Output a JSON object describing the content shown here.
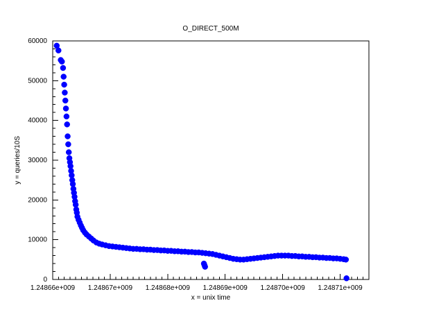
{
  "chart_data": {
    "type": "scatter",
    "title": "O_DIRECT_500M",
    "xlabel": "x = unix time",
    "ylabel": "y = queries/10S",
    "xlim": [
      1248660000,
      1248715000
    ],
    "ylim": [
      0,
      60000
    ],
    "x_ticks": [
      1248660000,
      1248670000,
      1248680000,
      1248690000,
      1248700000,
      1248710000
    ],
    "x_tick_labels": [
      "1.24866e+009",
      "1.24867e+009",
      "1.24868e+009",
      "1.24869e+009",
      "1.24870e+009",
      "1.24871e+009"
    ],
    "y_ticks": [
      0,
      10000,
      20000,
      30000,
      40000,
      50000,
      60000
    ],
    "y_tick_labels": [
      "0",
      "10000",
      "20000",
      "30000",
      "40000",
      "50000",
      "60000"
    ],
    "grid": false,
    "marker_color": "#0000ff",
    "series": [
      {
        "values": [
          [
            1248660700,
            58800
          ],
          [
            1248661000,
            57600
          ],
          [
            1248661400,
            55200
          ],
          [
            1248661600,
            54800
          ],
          [
            1248661800,
            53200
          ],
          [
            1248661900,
            51000
          ],
          [
            1248662000,
            49000
          ],
          [
            1248662100,
            47000
          ],
          [
            1248662200,
            45000
          ],
          [
            1248662300,
            43000
          ],
          [
            1248662400,
            41000
          ],
          [
            1248662500,
            39000
          ],
          [
            1248662600,
            36000
          ],
          [
            1248662700,
            34000
          ],
          [
            1248662800,
            32000
          ],
          [
            1248662900,
            30500
          ],
          [
            1248663000,
            29500
          ],
          [
            1248663100,
            28500
          ],
          [
            1248663200,
            27300
          ],
          [
            1248663300,
            26200
          ],
          [
            1248663400,
            25000
          ],
          [
            1248663500,
            24000
          ],
          [
            1248663600,
            22800
          ],
          [
            1248663700,
            21800
          ],
          [
            1248663800,
            20800
          ],
          [
            1248663900,
            19700
          ],
          [
            1248664000,
            18800
          ],
          [
            1248664100,
            17600
          ],
          [
            1248664200,
            16800
          ],
          [
            1248664300,
            15800
          ],
          [
            1248664500,
            15000
          ],
          [
            1248664700,
            14300
          ],
          [
            1248664900,
            13600
          ],
          [
            1248665100,
            13000
          ],
          [
            1248665300,
            12400
          ],
          [
            1248665600,
            11800
          ],
          [
            1248665900,
            11300
          ],
          [
            1248666300,
            10800
          ],
          [
            1248666700,
            10300
          ],
          [
            1248667100,
            9800
          ],
          [
            1248667600,
            9300
          ],
          [
            1248668100,
            9000
          ],
          [
            1248668600,
            8800
          ],
          [
            1248669200,
            8600
          ],
          [
            1248669800,
            8400
          ],
          [
            1248670400,
            8300
          ],
          [
            1248671000,
            8200
          ],
          [
            1248671600,
            8100
          ],
          [
            1248672200,
            8000
          ],
          [
            1248672800,
            7900
          ],
          [
            1248673400,
            7800
          ],
          [
            1248674000,
            7700
          ],
          [
            1248674600,
            7700
          ],
          [
            1248675200,
            7600
          ],
          [
            1248675800,
            7600
          ],
          [
            1248676400,
            7500
          ],
          [
            1248677000,
            7500
          ],
          [
            1248677600,
            7400
          ],
          [
            1248678200,
            7400
          ],
          [
            1248678800,
            7300
          ],
          [
            1248679400,
            7300
          ],
          [
            1248680000,
            7200
          ],
          [
            1248680600,
            7200
          ],
          [
            1248681200,
            7100
          ],
          [
            1248681800,
            7100
          ],
          [
            1248682400,
            7000
          ],
          [
            1248683000,
            7000
          ],
          [
            1248683600,
            6900
          ],
          [
            1248684200,
            6900
          ],
          [
            1248684800,
            6800
          ],
          [
            1248685400,
            6800
          ],
          [
            1248686000,
            6700
          ],
          [
            1248686600,
            6600
          ],
          [
            1248687200,
            6500
          ],
          [
            1248687800,
            6400
          ],
          [
            1248688400,
            6200
          ],
          [
            1248689000,
            6000
          ],
          [
            1248689600,
            5800
          ],
          [
            1248690200,
            5600
          ],
          [
            1248690800,
            5400
          ],
          [
            1248691400,
            5200
          ],
          [
            1248692000,
            5100
          ],
          [
            1248692600,
            5000
          ],
          [
            1248693200,
            5000
          ],
          [
            1248693800,
            5100
          ],
          [
            1248694400,
            5200
          ],
          [
            1248695000,
            5300
          ],
          [
            1248695600,
            5400
          ],
          [
            1248696200,
            5500
          ],
          [
            1248696800,
            5600
          ],
          [
            1248697400,
            5700
          ],
          [
            1248698000,
            5800
          ],
          [
            1248698600,
            5900
          ],
          [
            1248699200,
            6000
          ],
          [
            1248699800,
            6000
          ],
          [
            1248700400,
            6000
          ],
          [
            1248701000,
            6000
          ],
          [
            1248701600,
            5900
          ],
          [
            1248702200,
            5900
          ],
          [
            1248702800,
            5800
          ],
          [
            1248703400,
            5800
          ],
          [
            1248704000,
            5700
          ],
          [
            1248704600,
            5700
          ],
          [
            1248705200,
            5600
          ],
          [
            1248705800,
            5600
          ],
          [
            1248706400,
            5500
          ],
          [
            1248707000,
            5500
          ],
          [
            1248707600,
            5400
          ],
          [
            1248708200,
            5400
          ],
          [
            1248708800,
            5300
          ],
          [
            1248709400,
            5300
          ],
          [
            1248710000,
            5200
          ],
          [
            1248710600,
            5100
          ],
          [
            1248711000,
            5000
          ],
          [
            1248686300,
            4000
          ],
          [
            1248686400,
            3600
          ],
          [
            1248686500,
            3200
          ],
          [
            1248711100,
            300
          ]
        ]
      }
    ]
  }
}
